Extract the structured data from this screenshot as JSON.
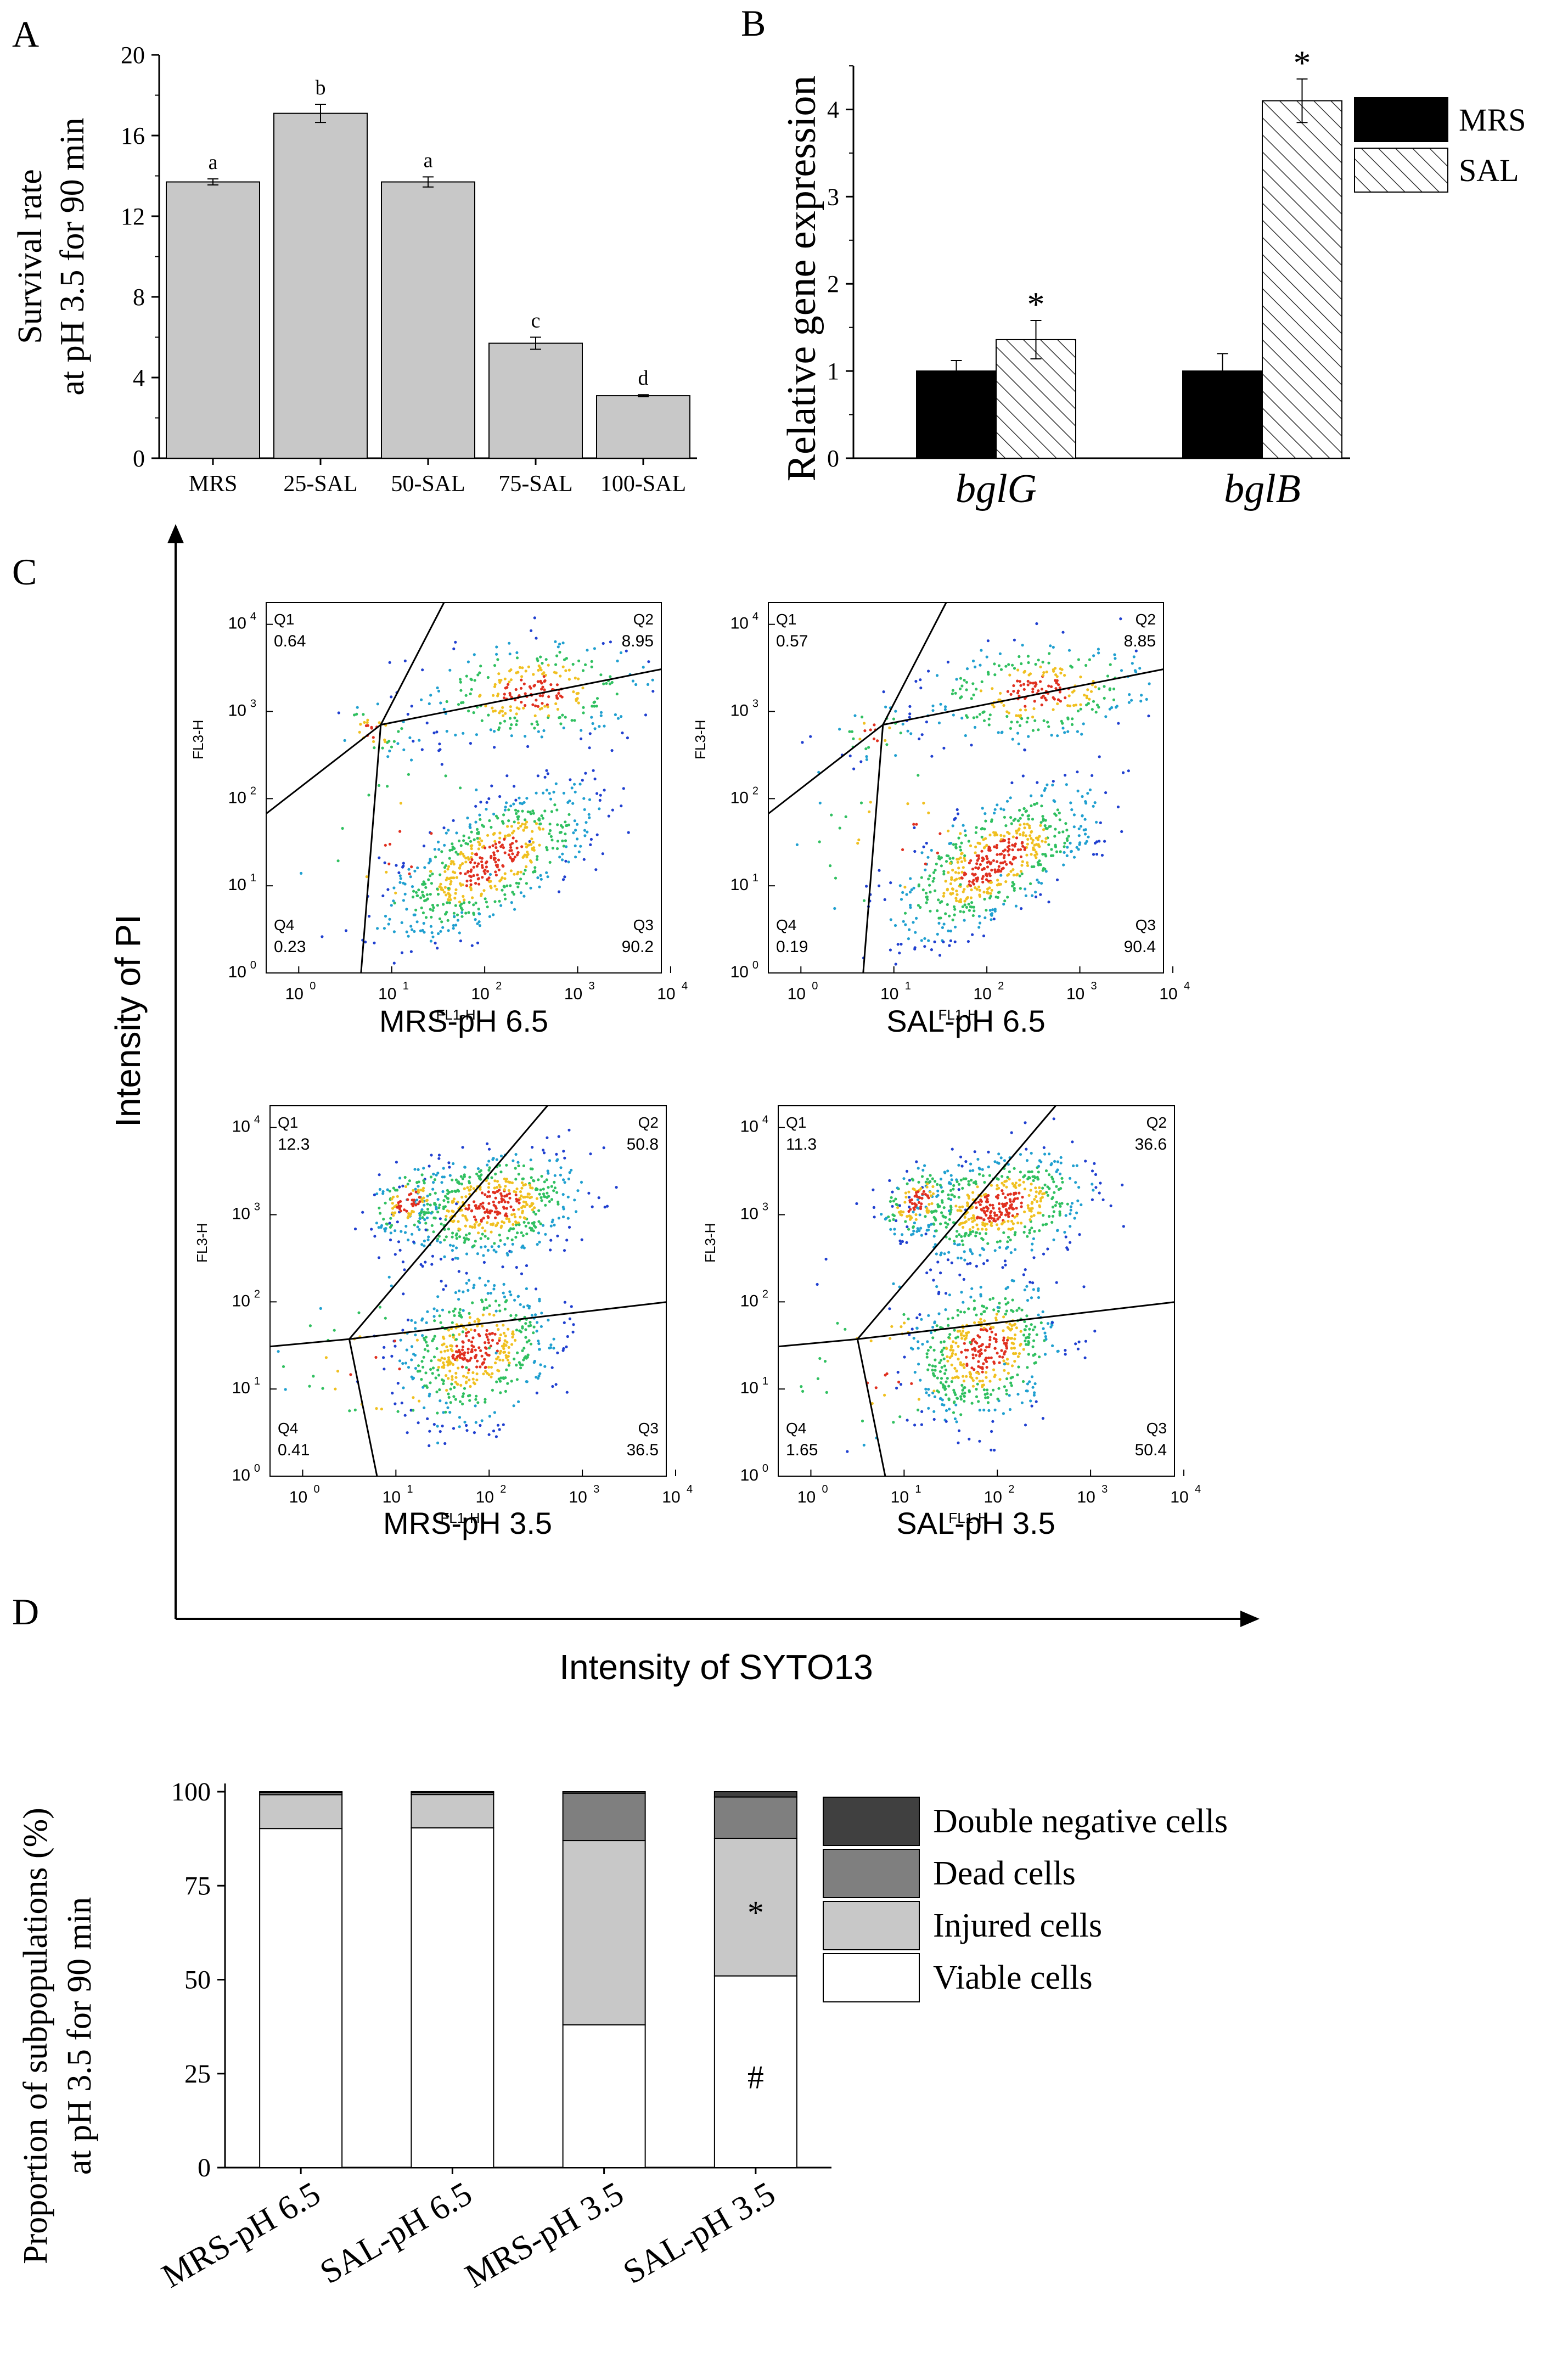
{
  "chart_data": [
    {
      "panel": "A",
      "type": "bar",
      "categories": [
        "MRS",
        "25-SAL",
        "50-SAL",
        "75-SAL",
        "100-SAL"
      ],
      "values": [
        13.7,
        17.1,
        13.7,
        5.7,
        3.1
      ],
      "errors": [
        0.15,
        0.45,
        0.25,
        0.3,
        0.05
      ],
      "letters": [
        "a",
        "b",
        "a",
        "c",
        "d"
      ],
      "ylabel_lines": [
        "Survival rate",
        "at pH 3.5 for 90 min"
      ],
      "ylim": [
        0,
        20
      ],
      "yticks": [
        "0",
        "4",
        "8",
        "12",
        "16",
        "20"
      ],
      "bar_color": "#c8c8c8"
    },
    {
      "panel": "B",
      "type": "bar",
      "categories": [
        "bglG",
        "bglB"
      ],
      "series": [
        {
          "name": "MRS",
          "values": [
            1.0,
            1.0
          ],
          "errors": [
            0.12,
            0.2
          ],
          "color": "#000000",
          "pattern": "solid"
        },
        {
          "name": "SAL",
          "values": [
            1.36,
            4.1
          ],
          "errors": [
            0.22,
            0.25
          ],
          "color": "#ffffff",
          "pattern": "hatch"
        }
      ],
      "significance": [
        "*",
        "*"
      ],
      "ylabel": "Relative gene expression",
      "ylim": [
        0,
        4.5
      ],
      "yticks": [
        "0",
        "1",
        "2",
        "3",
        "4"
      ],
      "legend": "top-right"
    },
    {
      "panel": "C",
      "type": "scatter",
      "ylabel": "Intensity of PI",
      "xlabel": "Intensity of SYTO13",
      "plots": [
        {
          "name": "MRS-pH 6.5",
          "q1": "0.64",
          "q2": "8.95",
          "q3": "90.2",
          "q4": "0.23"
        },
        {
          "name": "SAL-pH 6.5",
          "q1": "0.57",
          "q2": "8.85",
          "q3": "90.4",
          "q4": "0.19"
        },
        {
          "name": "MRS-pH 3.5",
          "q1": "12.3",
          "q2": "50.8",
          "q3": "36.5",
          "q4": "0.41"
        },
        {
          "name": "SAL-pH 3.5",
          "q1": "11.3",
          "q2": "36.6",
          "q3": "50.4",
          "q4": "1.65"
        }
      ],
      "quadrant_labels": [
        "Q1",
        "Q2",
        "Q3",
        "Q4"
      ],
      "axis_x_label": "FL1-H",
      "axis_y_label": "FL3-H",
      "log_ticks": [
        "0",
        "1",
        "2",
        "3",
        "4"
      ]
    },
    {
      "panel": "D",
      "type": "bar",
      "stacked": true,
      "categories": [
        "MRS-pH 6.5",
        "SAL-pH 6.5",
        "MRS-pH 3.5",
        "SAL-pH 3.5"
      ],
      "series": [
        {
          "name": "Viable cells",
          "values": [
            90.2,
            90.4,
            38.0,
            51.0
          ],
          "color": "#ffffff"
        },
        {
          "name": "Injured cells",
          "values": [
            9.0,
            8.85,
            49.0,
            36.6
          ],
          "color": "#c8c8c8"
        },
        {
          "name": "Dead cells",
          "values": [
            0.6,
            0.57,
            12.6,
            11.0
          ],
          "color": "#7f7f7f"
        },
        {
          "name": "Double negative cells",
          "values": [
            0.2,
            0.19,
            0.4,
            1.4
          ],
          "color": "#404040"
        }
      ],
      "legend_order": [
        "Double negative cells",
        "Dead cells",
        "Injured cells",
        "Viable cells"
      ],
      "ylabel_lines": [
        "Proportion of subpopulations (%)",
        "at pH 3.5 for 90 min"
      ],
      "ylim": [
        0,
        100
      ],
      "yticks": [
        "0",
        "25",
        "50",
        "75",
        "100"
      ],
      "annotations": [
        {
          "category": "SAL-pH 3.5",
          "series": "Injured cells",
          "text": "*"
        },
        {
          "category": "SAL-pH 3.5",
          "series": "Viable cells",
          "text": "#"
        }
      ]
    }
  ],
  "panel_letters": {
    "a": "A",
    "b": "B",
    "c": "C",
    "d": "D"
  }
}
